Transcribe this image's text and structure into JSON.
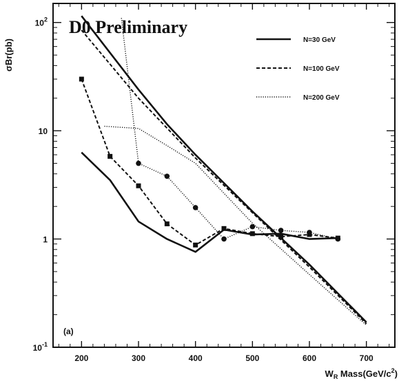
{
  "chart_data": {
    "type": "line",
    "title": "D0 Preliminary",
    "panel_label": "(a)",
    "xlabel": "W",
    "xlabel_sub": "R",
    "xlabel_rest": " Mass(GeV/c",
    "xlabel_sup": "2",
    "xlabel_end": ")",
    "ylabel": "σBr(pb)",
    "xlim": [
      150,
      750
    ],
    "ylim": [
      0.1,
      150
    ],
    "y_scale": "log",
    "x_ticks": [
      200,
      300,
      400,
      500,
      600,
      700
    ],
    "x_tick_labels": [
      "200",
      "300",
      "400",
      "500",
      "600",
      "700"
    ],
    "y_ticks": [
      {
        "value": 100,
        "base": "10",
        "exp": "2"
      },
      {
        "value": 10,
        "base": "10",
        "exp": ""
      },
      {
        "value": 1,
        "base": "1",
        "exp": ""
      },
      {
        "value": 0.1,
        "base": "10",
        "exp": "-1"
      }
    ],
    "legend_position": "top-right",
    "legend": [
      {
        "label": "N=30 GeV",
        "style": "solid"
      },
      {
        "label": "N=100 GeV",
        "style": "dashed"
      },
      {
        "label": "N=200 GeV",
        "style": "dotted"
      }
    ],
    "series": [
      {
        "style": "solid",
        "markers": false,
        "x": [
          200,
          250,
          300,
          350,
          400,
          450,
          500,
          550,
          600,
          650
        ],
        "y": [
          6.3,
          3.5,
          1.45,
          1.0,
          0.76,
          1.22,
          1.1,
          1.12,
          1.0,
          1.02
        ]
      },
      {
        "style": "dashed",
        "markers": "square",
        "x": [
          200,
          250,
          300,
          350,
          400,
          450,
          500,
          550,
          600,
          650
        ],
        "y": [
          30,
          5.8,
          3.1,
          1.38,
          0.88,
          1.25,
          1.12,
          1.05,
          1.1,
          1.02
        ]
      },
      {
        "style": "dotted",
        "markers": "circle",
        "x": [
          270,
          300,
          350,
          400,
          450,
          500,
          550,
          600,
          650
        ],
        "y": [
          110,
          5.0,
          3.8,
          1.95,
          1.0,
          1.3,
          1.2,
          1.15,
          1.0
        ]
      },
      {
        "style": "solid",
        "markers": false,
        "x": [
          200,
          300,
          350,
          400,
          500,
          600,
          700
        ],
        "y": [
          115,
          24,
          11.5,
          6.0,
          1.8,
          0.58,
          0.17
        ]
      },
      {
        "style": "dashed",
        "markers": false,
        "x": [
          200,
          300,
          400,
          500,
          600,
          700
        ],
        "y": [
          85,
          20,
          5.6,
          1.75,
          0.55,
          0.165
        ]
      },
      {
        "style": "dotted",
        "markers": false,
        "x": [
          240,
          300,
          350,
          400,
          500,
          600,
          700
        ],
        "y": [
          11,
          10.5,
          7.3,
          5.0,
          1.4,
          0.47,
          0.16
        ]
      }
    ]
  }
}
